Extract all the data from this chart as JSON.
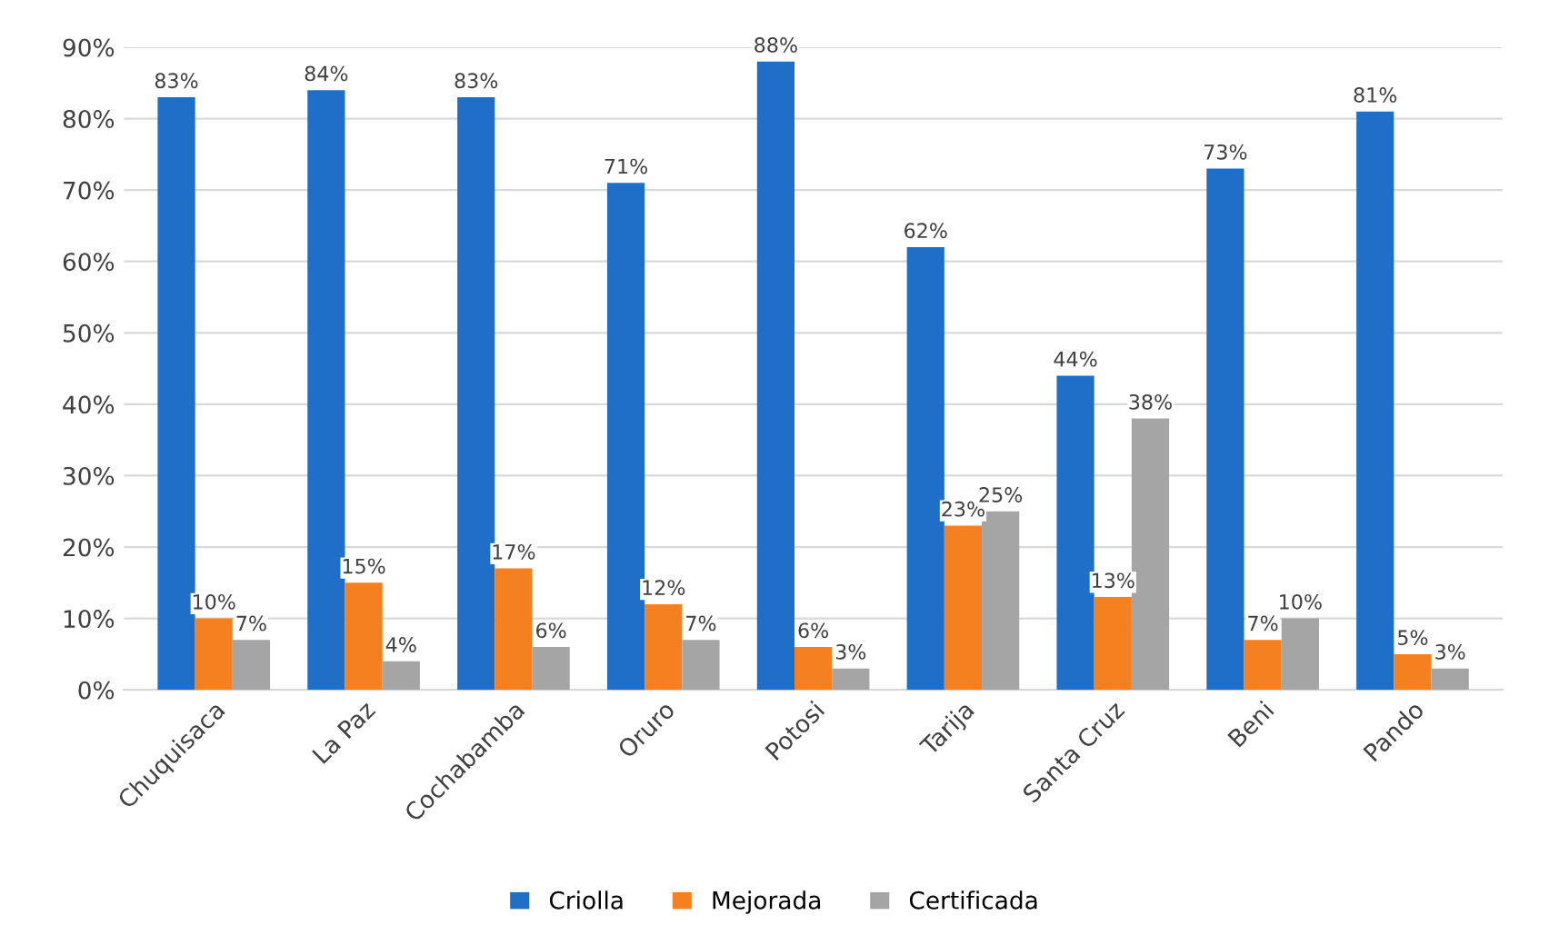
{
  "chart_data": {
    "type": "bar",
    "categories": [
      "Chuquisaca",
      "La Paz",
      "Cochabamba",
      "Oruro",
      "Potosi",
      "Tarija",
      "Santa Cruz",
      "Beni",
      "Pando"
    ],
    "series": [
      {
        "name": "Criolla",
        "color": "#1f6fc9",
        "values": [
          83,
          84,
          83,
          71,
          88,
          62,
          44,
          73,
          81
        ],
        "value_labels": [
          "83%",
          "84%",
          "83%",
          "71%",
          "88%",
          "62%",
          "44%",
          "73%",
          "81%"
        ]
      },
      {
        "name": "Mejorada",
        "color": "#f5801f",
        "values": [
          10,
          15,
          17,
          12,
          6,
          23,
          13,
          7,
          5
        ],
        "value_labels": [
          "10%",
          "15%",
          "17%",
          "12%",
          "6%",
          "23%",
          "13%",
          "7%",
          "5%"
        ]
      },
      {
        "name": "Certificada",
        "color": "#a5a5a5",
        "values": [
          7,
          4,
          6,
          7,
          3,
          25,
          38,
          10,
          3
        ],
        "value_labels": [
          "7%",
          "4%",
          "6%",
          "7%",
          "3%",
          "25%",
          "38%",
          "10%",
          "3%"
        ]
      }
    ],
    "ylim": [
      0,
      90
    ],
    "yticks": [
      {
        "value": 0,
        "label": "0%"
      },
      {
        "value": 10,
        "label": "10%"
      },
      {
        "value": 20,
        "label": "20%"
      },
      {
        "value": 30,
        "label": "30%"
      },
      {
        "value": 40,
        "label": "40%"
      },
      {
        "value": 50,
        "label": "50%"
      },
      {
        "value": 60,
        "label": "60%"
      },
      {
        "value": 70,
        "label": "70%"
      },
      {
        "value": 80,
        "label": "80%"
      },
      {
        "value": 90,
        "label": "90%"
      }
    ],
    "grid": "y",
    "legend": "bottom"
  }
}
